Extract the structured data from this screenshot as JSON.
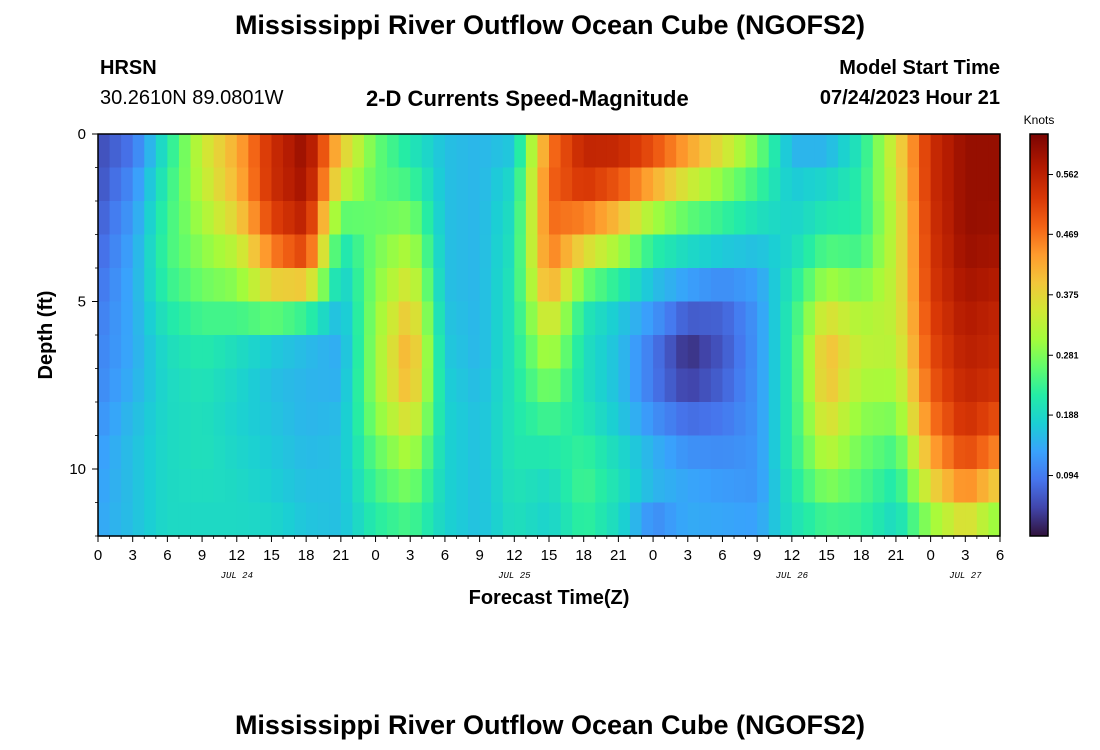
{
  "header": {
    "title": "Mississippi River Outflow Ocean Cube (NGOFS2)",
    "station": "HRSN",
    "location": "30.2610N  89.0801W",
    "subtitle": "2-D Currents Speed-Magnitude",
    "model_start_label": "Model Start Time",
    "model_start_value": "07/24/2023 Hour 21"
  },
  "footer": {
    "title": "Mississippi River Outflow Ocean Cube (NGOFS2)"
  },
  "chart_data": {
    "type": "heatmap",
    "xlabel": "Forecast Time(Z)",
    "ylabel": "Depth (ft)",
    "x_ticks": [
      "0",
      "3",
      "6",
      "9",
      "12",
      "15",
      "18",
      "21",
      "0",
      "3",
      "6",
      "9",
      "12",
      "15",
      "18",
      "21",
      "0",
      "3",
      "6",
      "9",
      "12",
      "15",
      "18",
      "21",
      "0",
      "3",
      "6"
    ],
    "x_dates": [
      {
        "label": "JUL 24",
        "hour_index": 12
      },
      {
        "label": "JUL 25",
        "hour_index": 36
      },
      {
        "label": "JUL 26",
        "hour_index": 60
      },
      {
        "label": "JUL 27",
        "hour_index": 75
      }
    ],
    "x_range_hours": [
      0,
      78
    ],
    "y_ticks": [
      "0",
      "5",
      "10"
    ],
    "y_range_ft": [
      0,
      12
    ],
    "colorbar": {
      "title": "Knots",
      "ticks": [
        "0.562",
        "0.469",
        "0.375",
        "0.281",
        "0.188",
        "0.094"
      ],
      "tick_values": [
        0.562,
        0.469,
        0.375,
        0.281,
        0.188,
        0.094
      ],
      "range": [
        0.0,
        0.625
      ]
    },
    "depth_levels_ft": [
      0,
      1,
      2,
      3,
      4,
      5,
      6,
      7,
      8,
      9,
      10,
      11,
      12
    ],
    "time_keys_hours": [
      0,
      3,
      6,
      9,
      12,
      15,
      18,
      21,
      24,
      27,
      30,
      33,
      36,
      39,
      42,
      45,
      48,
      51,
      54,
      57,
      60,
      63,
      66,
      69,
      72,
      75,
      78
    ],
    "speed_knots": [
      [
        0.05,
        0.08,
        0.2,
        0.34,
        0.42,
        0.53,
        0.6,
        0.4,
        0.27,
        0.2,
        0.16,
        0.15,
        0.16,
        0.45,
        0.55,
        0.56,
        0.52,
        0.46,
        0.4,
        0.3,
        0.14,
        0.13,
        0.2,
        0.36,
        0.54,
        0.6,
        0.6
      ],
      [
        0.05,
        0.1,
        0.22,
        0.34,
        0.42,
        0.55,
        0.6,
        0.38,
        0.26,
        0.22,
        0.16,
        0.15,
        0.18,
        0.48,
        0.56,
        0.54,
        0.48,
        0.4,
        0.32,
        0.25,
        0.16,
        0.17,
        0.22,
        0.36,
        0.54,
        0.6,
        0.6
      ],
      [
        0.06,
        0.12,
        0.23,
        0.32,
        0.4,
        0.53,
        0.58,
        0.3,
        0.26,
        0.26,
        0.16,
        0.15,
        0.2,
        0.48,
        0.5,
        0.45,
        0.36,
        0.3,
        0.26,
        0.22,
        0.18,
        0.2,
        0.22,
        0.34,
        0.54,
        0.6,
        0.6
      ],
      [
        0.07,
        0.13,
        0.24,
        0.3,
        0.36,
        0.5,
        0.55,
        0.22,
        0.27,
        0.3,
        0.16,
        0.15,
        0.2,
        0.47,
        0.42,
        0.36,
        0.26,
        0.22,
        0.2,
        0.18,
        0.18,
        0.22,
        0.22,
        0.34,
        0.53,
        0.6,
        0.59
      ],
      [
        0.08,
        0.14,
        0.24,
        0.28,
        0.3,
        0.42,
        0.48,
        0.18,
        0.28,
        0.34,
        0.16,
        0.15,
        0.21,
        0.46,
        0.32,
        0.26,
        0.18,
        0.16,
        0.14,
        0.14,
        0.2,
        0.28,
        0.26,
        0.34,
        0.53,
        0.59,
        0.58
      ],
      [
        0.09,
        0.14,
        0.22,
        0.26,
        0.28,
        0.34,
        0.3,
        0.16,
        0.29,
        0.38,
        0.16,
        0.15,
        0.21,
        0.4,
        0.22,
        0.18,
        0.14,
        0.1,
        0.08,
        0.12,
        0.22,
        0.33,
        0.3,
        0.34,
        0.52,
        0.58,
        0.56
      ],
      [
        0.1,
        0.14,
        0.2,
        0.22,
        0.2,
        0.18,
        0.16,
        0.14,
        0.3,
        0.42,
        0.17,
        0.15,
        0.21,
        0.34,
        0.2,
        0.16,
        0.1,
        0.03,
        0.06,
        0.12,
        0.22,
        0.4,
        0.33,
        0.33,
        0.51,
        0.57,
        0.55
      ],
      [
        0.1,
        0.14,
        0.19,
        0.21,
        0.19,
        0.16,
        0.15,
        0.14,
        0.3,
        0.43,
        0.17,
        0.15,
        0.21,
        0.3,
        0.2,
        0.16,
        0.08,
        0.02,
        0.06,
        0.12,
        0.22,
        0.41,
        0.33,
        0.32,
        0.5,
        0.56,
        0.55
      ],
      [
        0.11,
        0.15,
        0.19,
        0.2,
        0.18,
        0.16,
        0.15,
        0.15,
        0.3,
        0.4,
        0.18,
        0.16,
        0.21,
        0.26,
        0.2,
        0.16,
        0.1,
        0.06,
        0.08,
        0.12,
        0.22,
        0.39,
        0.3,
        0.3,
        0.48,
        0.55,
        0.52
      ],
      [
        0.12,
        0.16,
        0.19,
        0.2,
        0.18,
        0.17,
        0.15,
        0.16,
        0.27,
        0.34,
        0.18,
        0.16,
        0.21,
        0.22,
        0.22,
        0.18,
        0.13,
        0.1,
        0.1,
        0.12,
        0.22,
        0.35,
        0.28,
        0.26,
        0.45,
        0.53,
        0.48
      ],
      [
        0.13,
        0.16,
        0.19,
        0.2,
        0.19,
        0.17,
        0.16,
        0.16,
        0.25,
        0.3,
        0.18,
        0.16,
        0.21,
        0.2,
        0.24,
        0.2,
        0.16,
        0.13,
        0.12,
        0.12,
        0.22,
        0.31,
        0.26,
        0.22,
        0.4,
        0.49,
        0.42
      ],
      [
        0.13,
        0.16,
        0.19,
        0.19,
        0.19,
        0.18,
        0.16,
        0.16,
        0.23,
        0.26,
        0.18,
        0.16,
        0.2,
        0.18,
        0.24,
        0.2,
        0.14,
        0.14,
        0.13,
        0.12,
        0.2,
        0.26,
        0.24,
        0.2,
        0.34,
        0.42,
        0.34
      ],
      [
        0.14,
        0.16,
        0.19,
        0.19,
        0.19,
        0.19,
        0.17,
        0.16,
        0.21,
        0.23,
        0.18,
        0.16,
        0.2,
        0.18,
        0.22,
        0.18,
        0.08,
        0.14,
        0.14,
        0.14,
        0.2,
        0.22,
        0.22,
        0.18,
        0.26,
        0.32,
        0.24
      ]
    ]
  }
}
